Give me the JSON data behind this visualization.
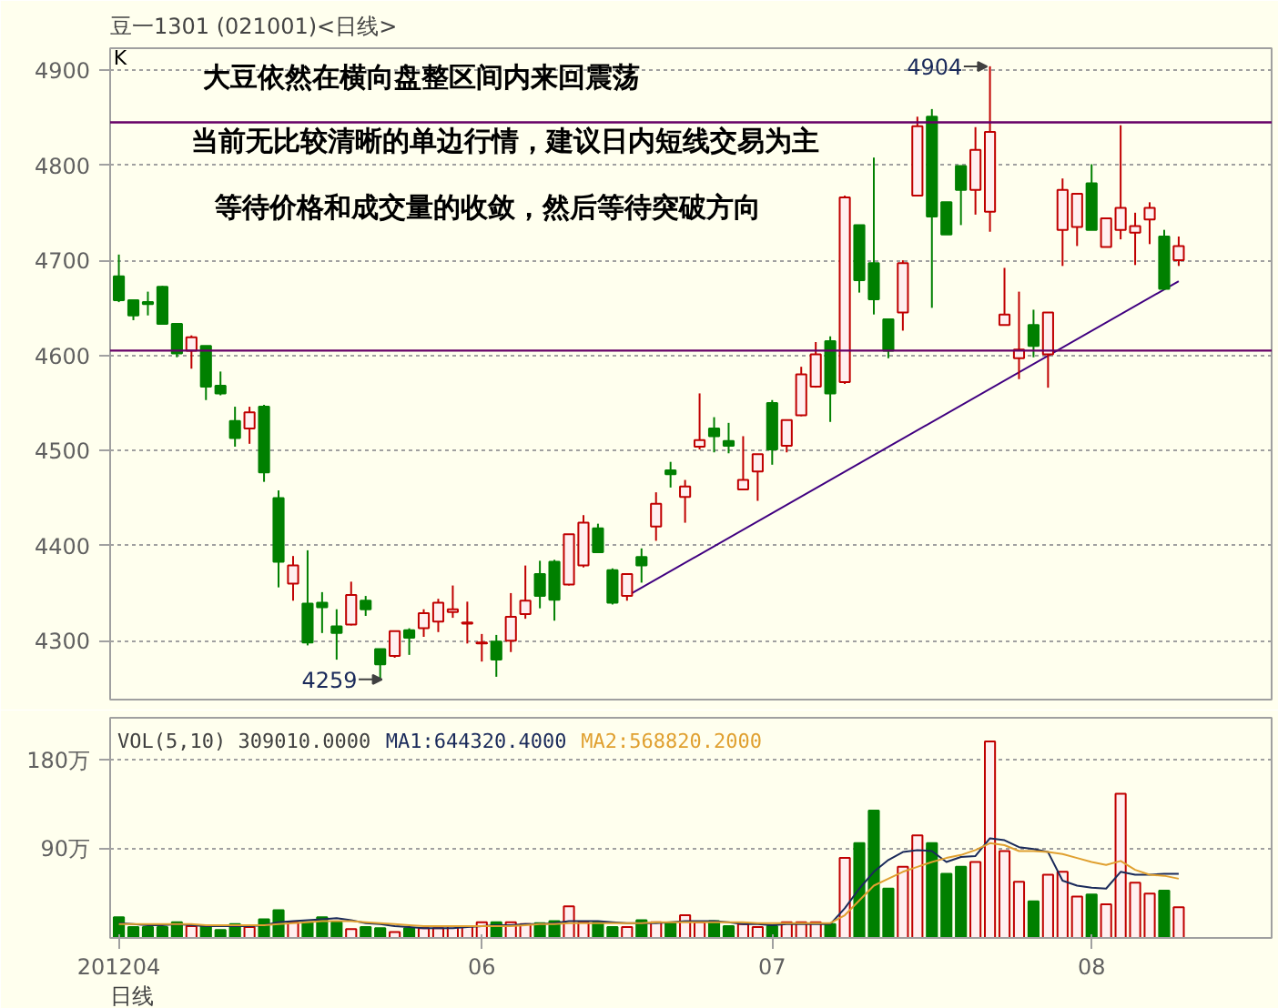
{
  "chart_data": [
    {
      "type": "candlestick",
      "title": "豆一1301 (021001)<日线>",
      "categories": [
        "201204",
        null,
        null,
        null,
        null,
        null,
        null,
        null,
        null,
        null,
        null,
        null,
        null,
        null,
        null,
        null,
        null,
        null,
        null,
        null,
        null,
        null,
        null,
        null,
        null,
        "06",
        null,
        null,
        null,
        null,
        null,
        null,
        null,
        null,
        null,
        null,
        null,
        null,
        null,
        null,
        null,
        null,
        null,
        null,
        null,
        "07",
        null,
        null,
        null,
        null,
        null,
        null,
        null,
        null,
        null,
        null,
        null,
        null,
        null,
        null,
        null,
        null,
        null,
        null,
        null,
        null,
        null,
        "08",
        null,
        null,
        null,
        null,
        null,
        null
      ],
      "ohlc": [
        [
          4683,
          4706,
          4656,
          4658
        ],
        [
          4658,
          4658,
          4637,
          4642
        ],
        [
          4656,
          4667,
          4642,
          4654
        ],
        [
          4672,
          4673,
          4633,
          4633
        ],
        [
          4633,
          4633,
          4598,
          4602
        ],
        [
          4605,
          4621,
          4586,
          4619
        ],
        [
          4610,
          4610,
          4553,
          4567
        ],
        [
          4568,
          4583,
          4558,
          4560
        ],
        [
          4531,
          4546,
          4504,
          4513
        ],
        [
          4523,
          4546,
          4507,
          4540
        ],
        [
          4546,
          4548,
          4467,
          4477
        ],
        [
          4450,
          4458,
          4356,
          4383
        ],
        [
          4360,
          4389,
          4342,
          4379
        ],
        [
          4339,
          4395,
          4295,
          4298
        ],
        [
          4340,
          4351,
          4308,
          4335
        ],
        [
          4315,
          4333,
          4280,
          4308
        ],
        [
          4317,
          4362,
          4316,
          4348
        ],
        [
          4342,
          4347,
          4326,
          4333
        ],
        [
          4291,
          4291,
          4259,
          4275
        ],
        [
          4284,
          4310,
          4282,
          4310
        ],
        [
          4311,
          4313,
          4285,
          4303
        ],
        [
          4313,
          4333,
          4304,
          4329
        ],
        [
          4320,
          4344,
          4309,
          4340
        ],
        [
          4330,
          4358,
          4324,
          4333
        ],
        [
          4318,
          4341,
          4297,
          4319
        ],
        [
          4297,
          4307,
          4278,
          4298
        ],
        [
          4299,
          4306,
          4262,
          4280
        ],
        [
          4300,
          4350,
          4288,
          4325
        ],
        [
          4328,
          4379,
          4323,
          4342
        ],
        [
          4370,
          4384,
          4334,
          4347
        ],
        [
          4383,
          4385,
          4321,
          4343
        ],
        [
          4359,
          4412,
          4358,
          4412
        ],
        [
          4379,
          4432,
          4377,
          4424
        ],
        [
          4418,
          4423,
          4392,
          4393
        ],
        [
          4374,
          4376,
          4338,
          4340
        ],
        [
          4347,
          4370,
          4342,
          4370
        ],
        [
          4388,
          4397,
          4361,
          4379
        ],
        [
          4420,
          4456,
          4405,
          4444
        ],
        [
          4479,
          4488,
          4461,
          4475
        ],
        [
          4451,
          4469,
          4424,
          4462
        ],
        [
          4504,
          4560,
          4501,
          4511
        ],
        [
          4523,
          4535,
          4498,
          4515
        ],
        [
          4510,
          4529,
          4497,
          4505
        ],
        [
          4459,
          4515,
          4459,
          4469
        ],
        [
          4478,
          4496,
          4447,
          4496
        ],
        [
          4550,
          4553,
          4485,
          4501
        ],
        [
          4505,
          4532,
          4498,
          4532
        ],
        [
          4537,
          4588,
          4536,
          4580
        ],
        [
          4567,
          4614,
          4566,
          4601
        ],
        [
          4615,
          4620,
          4530,
          4560
        ],
        [
          4572,
          4768,
          4570,
          4766
        ],
        [
          4737,
          4737,
          4666,
          4679
        ],
        [
          4697,
          4808,
          4643,
          4659
        ],
        [
          4638,
          4638,
          4597,
          4605
        ],
        [
          4645,
          4700,
          4626,
          4697
        ],
        [
          4768,
          4851,
          4768,
          4841
        ],
        [
          4851,
          4859,
          4650,
          4746
        ],
        [
          4761,
          4761,
          4727,
          4727
        ],
        [
          4799,
          4799,
          4737,
          4774
        ],
        [
          4774,
          4840,
          4748,
          4816
        ],
        [
          4751,
          4904,
          4730,
          4835
        ],
        [
          4632,
          4692,
          4632,
          4643
        ],
        [
          4597,
          4667,
          4575,
          4606
        ],
        [
          4632,
          4648,
          4598,
          4610
        ],
        [
          4601,
          4645,
          4566,
          4645
        ],
        [
          4732,
          4786,
          4694,
          4774
        ],
        [
          4735,
          4770,
          4715,
          4770
        ],
        [
          4781,
          4801,
          4732,
          4732
        ],
        [
          4714,
          4744,
          4714,
          4744
        ],
        [
          4732,
          4842,
          4722,
          4755
        ],
        [
          4729,
          4750,
          4695,
          4736
        ],
        [
          4743,
          4761,
          4717,
          4755
        ],
        [
          4725,
          4732,
          4669,
          4670
        ],
        [
          4700,
          4725,
          4694,
          4715
        ]
      ],
      "series": [
        {
          "type": "line",
          "values": [
            null,
            null,
            null,
            null,
            null,
            null,
            null,
            null,
            null,
            null,
            null,
            null,
            null,
            null,
            null,
            null,
            null,
            null,
            null,
            null,
            null,
            null,
            null,
            null,
            null,
            null,
            null,
            null,
            null,
            null,
            null,
            null,
            null,
            null,
            null,
            4347,
            null,
            null,
            null,
            null,
            null,
            null,
            null,
            null,
            null,
            null,
            null,
            null,
            null,
            null,
            null,
            null,
            null,
            null,
            null,
            null,
            null,
            null,
            null,
            null,
            null,
            null,
            null,
            null,
            null,
            null,
            null,
            null,
            null,
            null,
            null,
            null,
            null,
            4678
          ],
          "color": "#400080"
        }
      ],
      "ylim": [
        4238,
        4923
      ],
      "yticks": [
        4300,
        4400,
        4500,
        4600,
        4700,
        4800,
        4900
      ],
      "tick_labels": "y",
      "grid": "y",
      "ref_lines": [
        {
          "axis": "y",
          "value": 4845,
          "color": "#660066"
        },
        {
          "axis": "y",
          "value": 4605,
          "color": "#660066"
        }
      ],
      "annotations": [
        "K",
        "大豆依然在横向盘整区间内来回震荡",
        "当前无比较清晰的单边行情，建议日内短线交易为主",
        "等待价格和成交量的收敛，然后等待突破方向",
        "4904",
        "4259"
      ]
    },
    {
      "type": "bar",
      "title": "VOL(5,10) 309010.0000",
      "xlabel": "日线",
      "categories": [
        "201204",
        null,
        null,
        null,
        null,
        null,
        null,
        null,
        null,
        null,
        null,
        null,
        null,
        null,
        null,
        null,
        null,
        null,
        null,
        null,
        null,
        null,
        null,
        null,
        null,
        "06",
        null,
        null,
        null,
        null,
        null,
        null,
        null,
        null,
        null,
        null,
        null,
        null,
        null,
        null,
        null,
        null,
        null,
        null,
        null,
        "07",
        null,
        null,
        null,
        null,
        null,
        null,
        null,
        null,
        null,
        null,
        null,
        null,
        null,
        null,
        null,
        null,
        null,
        null,
        null,
        null,
        null,
        "08",
        null,
        null,
        null,
        null,
        null,
        null
      ],
      "series": [
        {
          "type": "bar",
          "values": [
            21,
            11,
            11,
            11,
            16,
            12,
            12,
            8,
            14,
            11,
            19,
            28,
            16,
            16,
            21,
            16,
            9,
            11,
            10,
            6,
            10,
            10,
            10,
            12,
            12,
            16,
            16,
            16,
            14,
            15,
            17,
            32,
            16,
            16,
            11,
            11,
            18,
            16,
            15,
            23,
            16,
            17,
            12,
            14,
            11,
            12,
            16,
            16,
            16,
            14,
            81,
            96,
            129,
            50,
            72,
            104,
            96,
            65,
            72,
            77,
            199,
            88,
            57,
            37,
            64,
            67,
            42,
            44,
            34,
            146,
            56,
            45,
            48,
            31
          ],
          "colors": [
            "#008000",
            "#008000",
            "#008000",
            "#008000",
            "#008000",
            "#c00000",
            "#008000",
            "#008000",
            "#008000",
            "#c00000",
            "#008000",
            "#008000",
            "#c00000",
            "#008000",
            "#008000",
            "#008000",
            "#c00000",
            "#008000",
            "#008000",
            "#c00000",
            "#008000",
            "#c00000",
            "#c00000",
            "#c00000",
            "#c00000",
            "#c00000",
            "#008000",
            "#c00000",
            "#c00000",
            "#008000",
            "#008000",
            "#c00000",
            "#c00000",
            "#008000",
            "#008000",
            "#c00000",
            "#008000",
            "#c00000",
            "#008000",
            "#c00000",
            "#c00000",
            "#008000",
            "#008000",
            "#c00000",
            "#c00000",
            "#008000",
            "#c00000",
            "#c00000",
            "#c00000",
            "#008000",
            "#c00000",
            "#008000",
            "#008000",
            "#008000",
            "#c00000",
            "#c00000",
            "#008000",
            "#008000",
            "#008000",
            "#c00000",
            "#c00000",
            "#c00000",
            "#c00000",
            "#008000",
            "#c00000",
            "#c00000",
            "#c00000",
            "#008000",
            "#c00000",
            "#c00000",
            "#c00000",
            "#c00000",
            "#008000",
            "#c00000"
          ]
        },
        {
          "type": "line",
          "name": "MA1:644320.4000",
          "color": "#1a2a5a",
          "values": [
            15,
            14,
            13,
            13,
            14,
            13,
            12,
            12,
            12,
            12,
            13,
            16,
            17,
            18,
            19,
            20,
            18,
            15,
            14,
            12,
            11,
            10,
            10,
            10,
            11,
            12,
            13,
            13,
            14,
            14,
            15,
            17,
            17,
            17,
            16,
            15,
            15,
            15,
            16,
            17,
            17,
            17,
            16,
            14,
            14,
            13,
            14,
            14,
            14,
            14,
            30,
            50,
            67,
            79,
            87,
            89,
            88,
            77,
            82,
            83,
            101,
            99,
            92,
            90,
            87,
            58,
            53,
            51,
            50,
            67,
            64,
            64,
            65,
            65
          ]
        },
        {
          "type": "line",
          "name": "MA2:568820.2000",
          "color": "#e0a030",
          "values": [
            14,
            14,
            14,
            14,
            14,
            14,
            13,
            13,
            13,
            13,
            13,
            14,
            15,
            16,
            17,
            17,
            17,
            16,
            15,
            14,
            13,
            12,
            12,
            12,
            12,
            12,
            12,
            12,
            13,
            14,
            14,
            15,
            15,
            15,
            15,
            15,
            15,
            16,
            16,
            16,
            16,
            16,
            16,
            16,
            15,
            15,
            15,
            15,
            15,
            15,
            23,
            38,
            53,
            60,
            67,
            72,
            77,
            81,
            84,
            89,
            96,
            94,
            88,
            88,
            87,
            85,
            81,
            77,
            74,
            78,
            69,
            64,
            63,
            60
          ]
        }
      ],
      "ylim": [
        0,
        223
      ],
      "yticks": [
        {
          "value": 90,
          "label": "90万"
        },
        {
          "value": 180,
          "label": "180万"
        }
      ],
      "grid": "y",
      "legend": "top left"
    }
  ]
}
